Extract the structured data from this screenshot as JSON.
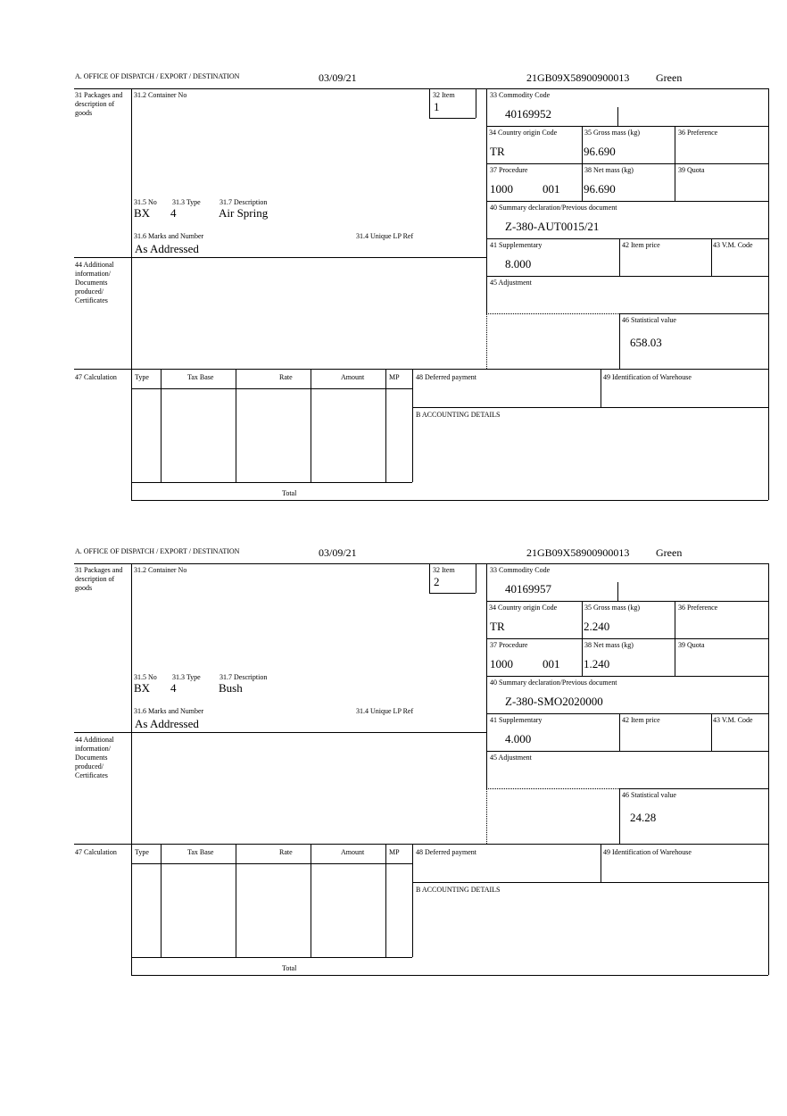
{
  "labels": {
    "office": "A. OFFICE OF DISPATCH / EXPORT / DESTINATION",
    "packages": "31 Packages and description of goods",
    "container": "31.2 Container No",
    "item": "32 Item",
    "no": "31.5 No",
    "type": "31.3 Type",
    "description": "31.7 Description",
    "marks": "31.6 Marks and Number",
    "unique_ref": "31.4 Unique LP Ref",
    "commodity": "33 Commodity Code",
    "country": "34 Country origin Code",
    "gross": "35 Gross mass (kg)",
    "preference": "36 Preference",
    "procedure": "37 Procedure",
    "net": "38 Net mass (kg)",
    "quota": "39 Quota",
    "summary": "40 Summary declaration/Previous document",
    "supplementary": "41 Supplementary",
    "item_price": "42 Item price",
    "vm_code": "43 V.M. Code",
    "additional": "44 Additional information/ Documents produced/ Certificates",
    "adjustment": "45 Adjustment",
    "statistical": "46 Statistical value",
    "calculation": "47 Calculation",
    "calc_cols": [
      "Type",
      "Tax Base",
      "Rate",
      "Amount",
      "MP"
    ],
    "total": "Total",
    "deferred": "48 Deferred payment",
    "warehouse": "49 Identification of Warehouse",
    "accounting": "B ACCOUNTING DETAILS"
  },
  "items": [
    {
      "date": "03/09/21",
      "reference": "21GB09X58900900013",
      "route": "Green",
      "item_no": "1",
      "package_no": "BX",
      "package_type": "4",
      "description": "Air Spring",
      "marks": "As Addressed",
      "commodity_code": "40169952",
      "country_origin": "TR",
      "gross_mass": "96.690",
      "procedure": "1000",
      "procedure_add": "001",
      "net_mass": "96.690",
      "summary_doc": "Z-380-AUT0015/21",
      "supplementary": "8.000",
      "statistical_value": "658.03"
    },
    {
      "date": "03/09/21",
      "reference": "21GB09X58900900013",
      "route": "Green",
      "item_no": "2",
      "package_no": "BX",
      "package_type": "4",
      "description": "Bush",
      "marks": "As Addressed",
      "commodity_code": "40169957",
      "country_origin": "TR",
      "gross_mass": "2.240",
      "procedure": "1000",
      "procedure_add": "001",
      "net_mass": "1.240",
      "summary_doc": "Z-380-SMO2020000",
      "supplementary": "4.000",
      "statistical_value": "24.28"
    }
  ]
}
